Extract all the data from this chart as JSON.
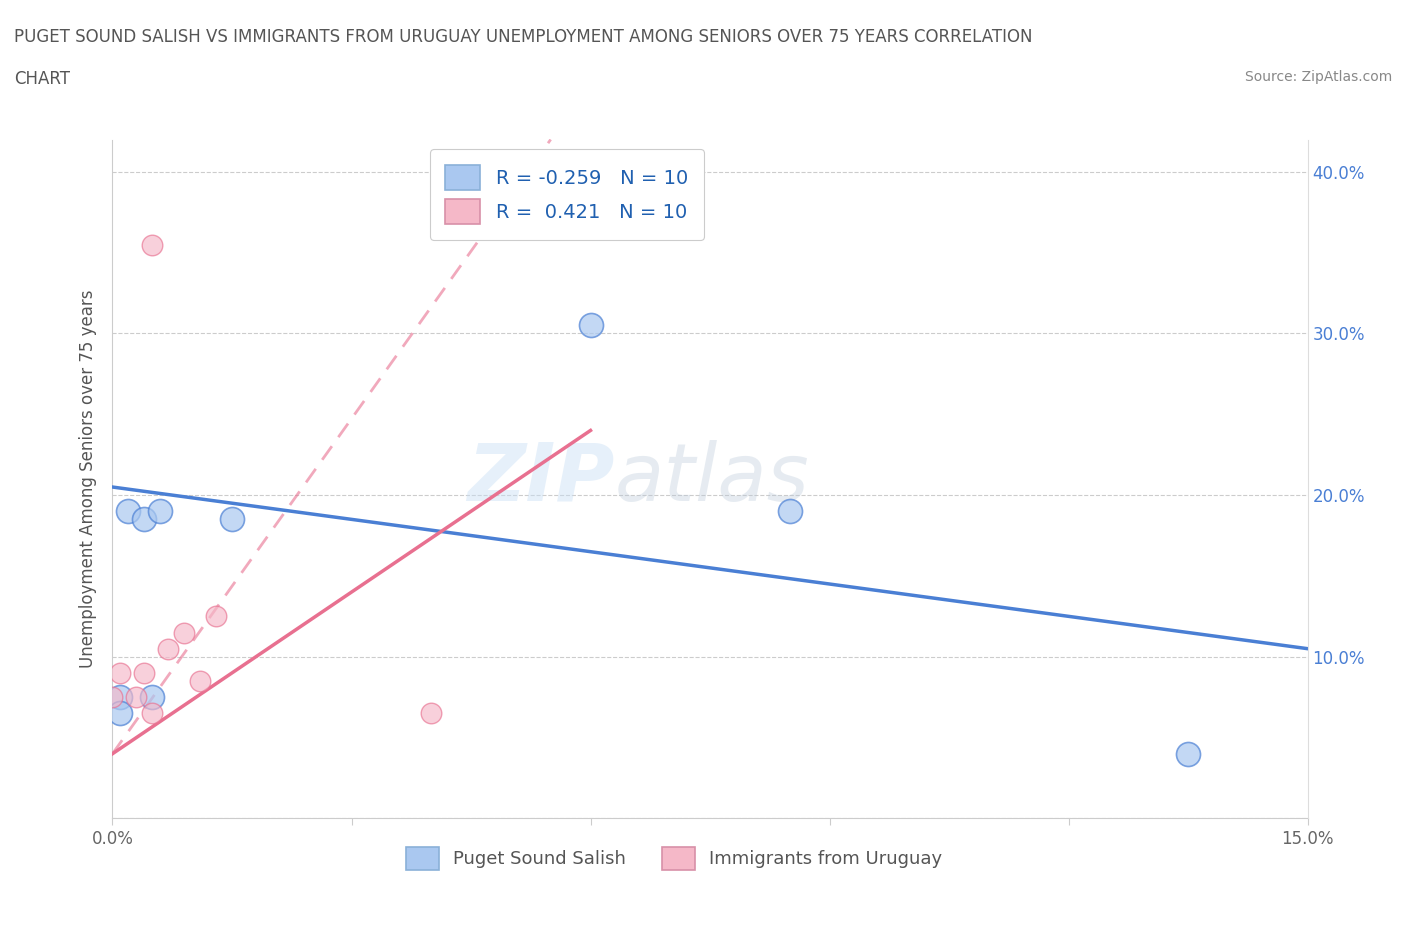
{
  "title_line1": "PUGET SOUND SALISH VS IMMIGRANTS FROM URUGUAY UNEMPLOYMENT AMONG SENIORS OVER 75 YEARS CORRELATION",
  "title_line2": "CHART",
  "source": "Source: ZipAtlas.com",
  "ylabel": "Unemployment Among Seniors over 75 years",
  "xlim": [
    0.0,
    0.15
  ],
  "ylim": [
    0.0,
    0.42
  ],
  "xticks": [
    0.0,
    0.03,
    0.06,
    0.09,
    0.12,
    0.15
  ],
  "yticks": [
    0.0,
    0.1,
    0.2,
    0.3,
    0.4
  ],
  "puget_sound_salish_x": [
    0.001,
    0.001,
    0.002,
    0.004,
    0.005,
    0.006,
    0.015,
    0.06,
    0.085,
    0.135
  ],
  "puget_sound_salish_y": [
    0.075,
    0.065,
    0.19,
    0.185,
    0.075,
    0.19,
    0.185,
    0.305,
    0.19,
    0.04
  ],
  "immigrants_uruguay_x": [
    0.0,
    0.001,
    0.003,
    0.004,
    0.005,
    0.007,
    0.009,
    0.011,
    0.013,
    0.04
  ],
  "immigrants_uruguay_y": [
    0.075,
    0.09,
    0.075,
    0.09,
    0.065,
    0.105,
    0.115,
    0.085,
    0.125,
    0.065
  ],
  "immigrants_uruguay_outlier_x": [
    0.005
  ],
  "immigrants_uruguay_outlier_y": [
    0.355
  ],
  "R_puget": -0.259,
  "N_puget": 10,
  "R_uruguay": 0.421,
  "N_uruguay": 10,
  "color_puget": "#aac8f0",
  "color_uruguay": "#f5b8c8",
  "line_color_puget": "#4a7fd4",
  "line_color_uruguay": "#e87090",
  "watermark_zip": "ZIP",
  "watermark_atlas": "atlas",
  "legend_labels": [
    "Puget Sound Salish",
    "Immigrants from Uruguay"
  ]
}
